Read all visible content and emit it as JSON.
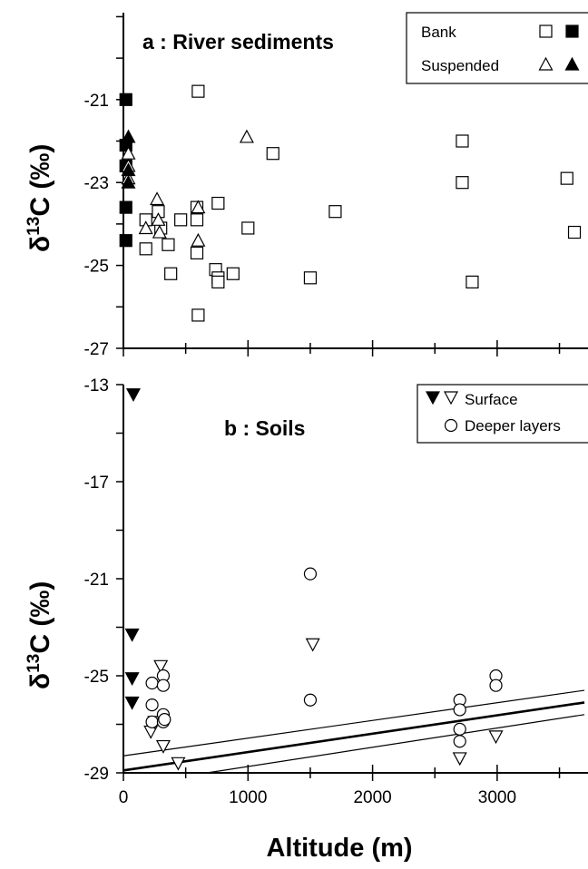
{
  "chart_data": [
    {
      "type": "scatter",
      "title": "a : River sediments",
      "ylabel_prefix": "δ",
      "ylabel_sup": "13",
      "ylabel_suffix": "C (‰)",
      "xlabel": "",
      "xlim": [
        0,
        3700
      ],
      "ylim": [
        -27,
        -19
      ],
      "yticks": [
        -21,
        -23,
        -25,
        -27
      ],
      "legend": [
        {
          "label": "Bank",
          "symbols": [
            "open-square",
            "filled-square"
          ]
        },
        {
          "label": "Suspended",
          "symbols": [
            "open-triangle",
            "filled-triangle"
          ]
        }
      ],
      "series": [
        {
          "name": "Bank",
          "marker": "open-square",
          "points": [
            [
              600,
              -20.8
            ],
            [
              180,
              -23.9
            ],
            [
              180,
              -24.6
            ],
            [
              280,
              -23.7
            ],
            [
              300,
              -24.1
            ],
            [
              360,
              -24.5
            ],
            [
              380,
              -25.2
            ],
            [
              460,
              -23.9
            ],
            [
              590,
              -23.6
            ],
            [
              590,
              -23.9
            ],
            [
              590,
              -24.7
            ],
            [
              600,
              -26.2
            ],
            [
              740,
              -25.1
            ],
            [
              760,
              -25.3
            ],
            [
              760,
              -25.4
            ],
            [
              760,
              -23.5
            ],
            [
              880,
              -25.2
            ],
            [
              1000,
              -24.1
            ],
            [
              1200,
              -22.3
            ],
            [
              1500,
              -25.3
            ],
            [
              1700,
              -23.7
            ],
            [
              2720,
              -22.0
            ],
            [
              2720,
              -23.0
            ],
            [
              2800,
              -25.4
            ],
            [
              3560,
              -22.9
            ],
            [
              3620,
              -24.2
            ]
          ]
        },
        {
          "name": "Bank",
          "marker": "filled-square",
          "points": [
            [
              20,
              -21.0
            ],
            [
              20,
              -22.1
            ],
            [
              20,
              -22.6
            ],
            [
              20,
              -23.6
            ],
            [
              20,
              -24.4
            ]
          ]
        },
        {
          "name": "Suspended",
          "marker": "open-triangle",
          "points": [
            [
              40,
              -22.3
            ],
            [
              40,
              -22.6
            ],
            [
              40,
              -22.9
            ],
            [
              180,
              -24.1
            ],
            [
              270,
              -23.4
            ],
            [
              280,
              -23.9
            ],
            [
              290,
              -24.2
            ],
            [
              600,
              -23.6
            ],
            [
              600,
              -24.4
            ],
            [
              990,
              -21.9
            ]
          ]
        },
        {
          "name": "Suspended",
          "marker": "filled-triangle",
          "points": [
            [
              40,
              -21.9
            ],
            [
              40,
              -22.7
            ],
            [
              40,
              -23.0
            ]
          ]
        }
      ]
    },
    {
      "type": "scatter",
      "title": "b : Soils",
      "ylabel_prefix": "δ",
      "ylabel_sup": "13",
      "ylabel_suffix": "C (‰)",
      "xlabel": "Altitude (m)",
      "xlim": [
        0,
        3700
      ],
      "ylim": [
        -29,
        -13
      ],
      "yticks": [
        -13,
        -17,
        -21,
        -25,
        -29
      ],
      "xticks": [
        0,
        1000,
        2000,
        3000
      ],
      "legend": [
        {
          "label": "Surface",
          "symbols": [
            "filled-down-triangle",
            "open-down-triangle"
          ]
        },
        {
          "label": "Deeper layers",
          "symbols": [
            "open-circle"
          ]
        }
      ],
      "series": [
        {
          "name": "Surface",
          "marker": "filled-down-triangle",
          "points": [
            [
              80,
              -13.4
            ],
            [
              70,
              -23.3
            ],
            [
              70,
              -25.1
            ],
            [
              70,
              -26.1
            ]
          ]
        },
        {
          "name": "Surface",
          "marker": "open-down-triangle",
          "points": [
            [
              220,
              -27.3
            ],
            [
              250,
              -26.9
            ],
            [
              300,
              -24.6
            ],
            [
              320,
              -27.9
            ],
            [
              440,
              -28.6
            ],
            [
              1520,
              -23.7
            ],
            [
              2700,
              -28.4
            ],
            [
              2990,
              -27.5
            ]
          ]
        },
        {
          "name": "Deeper layers",
          "marker": "open-circle",
          "points": [
            [
              230,
              -25.3
            ],
            [
              230,
              -26.2
            ],
            [
              230,
              -26.9
            ],
            [
              320,
              -25.0
            ],
            [
              320,
              -25.4
            ],
            [
              320,
              -26.6
            ],
            [
              320,
              -26.9
            ],
            [
              330,
              -26.8
            ],
            [
              1500,
              -20.8
            ],
            [
              1500,
              -26.0
            ],
            [
              2700,
              -26.0
            ],
            [
              2700,
              -26.4
            ],
            [
              2700,
              -27.2
            ],
            [
              2700,
              -27.7
            ],
            [
              2990,
              -25.0
            ],
            [
              2990,
              -25.4
            ]
          ]
        }
      ],
      "lines": [
        {
          "style": "thick",
          "x": [
            0,
            3700
          ],
          "y": [
            -28.9,
            -26.1
          ]
        },
        {
          "style": "thin",
          "x": [
            0,
            3700
          ],
          "y": [
            -28.3,
            -25.6
          ]
        },
        {
          "style": "thin",
          "x": [
            670,
            3700
          ],
          "y": [
            -29.0,
            -26.6
          ]
        }
      ]
    }
  ]
}
